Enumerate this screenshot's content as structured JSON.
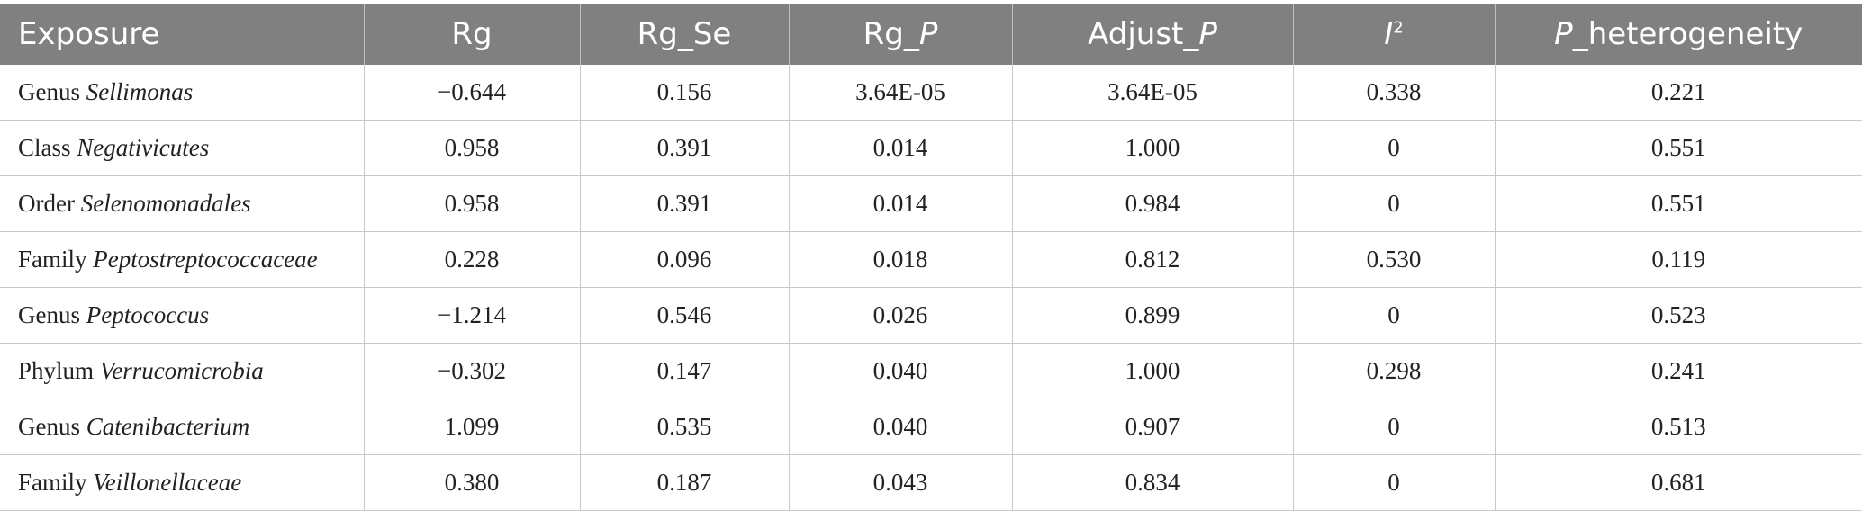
{
  "header": {
    "exposure": "Exposure",
    "rg": "Rg",
    "rg_se": "Rg_Se",
    "rg_p_prefix": "Rg_",
    "rg_p_italic": "P",
    "adjust_p_prefix": "Adjust_",
    "adjust_p_italic": "P",
    "i2_italic": "I",
    "i2_sup": "2",
    "p_het_italic": "P",
    "p_het_suffix": "_heterogeneity"
  },
  "rows": [
    {
      "rank": "Genus",
      "taxon": "Sellimonas",
      "rg": "−0.644",
      "rg_se": "0.156",
      "rg_p": "3.64E-05",
      "adjust_p": "3.64E-05",
      "i2": "0.338",
      "p_het": "0.221"
    },
    {
      "rank": "Class",
      "taxon": "Negativicutes",
      "rg": "0.958",
      "rg_se": "0.391",
      "rg_p": "0.014",
      "adjust_p": "1.000",
      "i2": "0",
      "p_het": "0.551"
    },
    {
      "rank": "Order",
      "taxon": "Selenomonadales",
      "rg": "0.958",
      "rg_se": "0.391",
      "rg_p": "0.014",
      "adjust_p": "0.984",
      "i2": "0",
      "p_het": "0.551"
    },
    {
      "rank": "Family",
      "taxon": "Peptostreptococcaceae",
      "rg": "0.228",
      "rg_se": "0.096",
      "rg_p": "0.018",
      "adjust_p": "0.812",
      "i2": "0.530",
      "p_het": "0.119"
    },
    {
      "rank": "Genus",
      "taxon": "Peptococcus",
      "rg": "−1.214",
      "rg_se": "0.546",
      "rg_p": "0.026",
      "adjust_p": "0.899",
      "i2": "0",
      "p_het": "0.523"
    },
    {
      "rank": "Phylum",
      "taxon": "Verrucomicrobia",
      "rg": "−0.302",
      "rg_se": "0.147",
      "rg_p": "0.040",
      "adjust_p": "1.000",
      "i2": "0.298",
      "p_het": "0.241"
    },
    {
      "rank": "Genus",
      "taxon": "Catenibacterium",
      "rg": "1.099",
      "rg_se": "0.535",
      "rg_p": "0.040",
      "adjust_p": "0.907",
      "i2": "0",
      "p_het": "0.513"
    },
    {
      "rank": "Family",
      "taxon": "Veillonellaceae",
      "rg": "0.380",
      "rg_se": "0.187",
      "rg_p": "0.043",
      "adjust_p": "0.834",
      "i2": "0",
      "p_het": "0.681"
    }
  ]
}
